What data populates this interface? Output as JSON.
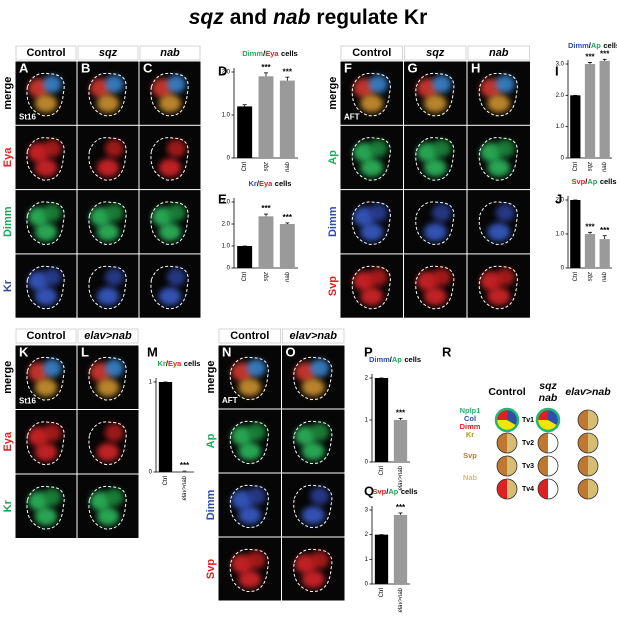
{
  "title_parts": [
    {
      "text": "sqz",
      "italic": true
    },
    {
      "text": "and"
    },
    {
      "text": "nab",
      "italic": true
    },
    {
      "text": "regulate Kr"
    }
  ],
  "image_groups": [
    {
      "columns": [
        "Control",
        "sqz",
        "nab"
      ],
      "rows": [
        "merge",
        "Eya",
        "Dimm",
        "Kr"
      ],
      "row_colors": [
        "#000000",
        "#e02020",
        "#1fa85a",
        "#2e4fa8"
      ],
      "panel_letters": [
        "A",
        "B",
        "C"
      ],
      "stage": "St16"
    },
    {
      "columns": [
        "Control",
        "sqz",
        "nab"
      ],
      "rows": [
        "merge",
        "Ap",
        "Dimm",
        "Svp"
      ],
      "row_colors": [
        "#000000",
        "#1fa85a",
        "#2e4fa8",
        "#e02020"
      ],
      "panel_letters": [
        "F",
        "G",
        "H"
      ],
      "stage": "AFT"
    },
    {
      "columns": [
        "Control",
        "elav>nab"
      ],
      "rows": [
        "merge",
        "Eya",
        "Kr"
      ],
      "row_colors": [
        "#000000",
        "#e02020",
        "#1fa85a"
      ],
      "panel_letters": [
        "K",
        "L"
      ],
      "stage": "St16"
    },
    {
      "columns": [
        "Control",
        "elav>nab"
      ],
      "rows": [
        "merge",
        "Ap",
        "Dimm",
        "Svp"
      ],
      "row_colors": [
        "#000000",
        "#1fa85a",
        "#2e4fa8",
        "#e02020"
      ],
      "panel_letters": [
        "N",
        "O"
      ],
      "stage": "AFT"
    }
  ],
  "chart_data": [
    {
      "type": "bar",
      "letter": "D",
      "title_parts": [
        {
          "text": "Dimm",
          "color": "#1fa85a"
        },
        {
          "text": "/"
        },
        {
          "text": "Eya",
          "color": "#e02020"
        },
        {
          "text": "cells"
        }
      ],
      "categories": [
        "Ctrl",
        "sqz",
        "nab"
      ],
      "values": [
        1.2,
        1.9,
        1.8
      ],
      "errors": [
        0.04,
        0.08,
        0.08
      ],
      "significance": [
        null,
        "***",
        "***"
      ],
      "colors": [
        "#000000",
        "#9a9a9a",
        "#9a9a9a"
      ],
      "ylim": [
        0,
        2
      ],
      "yticks": [
        0,
        {
          "value": 1,
          "label": "1.0"
        },
        {
          "value": 2,
          "label": "2.0"
        }
      ]
    },
    {
      "type": "bar",
      "letter": "E",
      "title_parts": [
        {
          "text": "Kr",
          "color": "#2e4fa8"
        },
        {
          "text": "/"
        },
        {
          "text": "Eya",
          "color": "#e02020"
        },
        {
          "text": "cells"
        }
      ],
      "categories": [
        "Ctrl",
        "sqz",
        "nab"
      ],
      "values": [
        1.0,
        2.35,
        2.0
      ],
      "errors": [
        0,
        0.1,
        0.05
      ],
      "significance": [
        null,
        "***",
        "***"
      ],
      "colors": [
        "#000000",
        "#9a9a9a",
        "#9a9a9a"
      ],
      "ylim": [
        0,
        3
      ],
      "yticks": [
        0,
        {
          "value": 1,
          "label": "1.0"
        },
        {
          "value": 2,
          "label": "2.0"
        },
        {
          "value": 3,
          "label": "3.0"
        }
      ]
    },
    {
      "type": "bar",
      "letter": "I",
      "title_parts": [
        {
          "text": "Dimm",
          "color": "#2e4fa8"
        },
        {
          "text": "/"
        },
        {
          "text": "Ap",
          "color": "#1fa85a"
        },
        {
          "text": "cells"
        }
      ],
      "categories": [
        "Ctrl",
        "sqz",
        "nab"
      ],
      "values": [
        2.0,
        3.0,
        3.1
      ],
      "errors": [
        0,
        0.05,
        0.05
      ],
      "significance": [
        null,
        "***",
        "***"
      ],
      "colors": [
        "#000000",
        "#9a9a9a",
        "#9a9a9a"
      ],
      "ylim": [
        0,
        3
      ],
      "yticks": [
        0,
        {
          "value": 1,
          "label": "1.0"
        },
        {
          "value": 2,
          "label": "2.0"
        },
        {
          "value": 3,
          "label": "3.0"
        }
      ]
    },
    {
      "type": "bar",
      "letter": "J",
      "title_parts": [
        {
          "text": "Svp",
          "color": "#e02020"
        },
        {
          "text": "/"
        },
        {
          "text": "Ap",
          "color": "#1fa85a"
        },
        {
          "text": "cells"
        }
      ],
      "categories": [
        "Ctrl",
        "sqz",
        "nab"
      ],
      "values": [
        2.0,
        1.0,
        0.85
      ],
      "errors": [
        0,
        0.05,
        0.1
      ],
      "significance": [
        null,
        "***",
        "***"
      ],
      "colors": [
        "#000000",
        "#9a9a9a",
        "#9a9a9a"
      ],
      "ylim": [
        0,
        2
      ],
      "yticks": [
        0,
        {
          "value": 1,
          "label": "1.0"
        },
        {
          "value": 2,
          "label": "2.0"
        }
      ]
    },
    {
      "type": "bar",
      "letter": "M",
      "title_parts": [
        {
          "text": "Kr",
          "color": "#1fa85a"
        },
        {
          "text": "/"
        },
        {
          "text": "Eya",
          "color": "#e02020"
        },
        {
          "text": "cells"
        }
      ],
      "categories": [
        "Ctrl",
        "elav>nab"
      ],
      "values": [
        1,
        0.01
      ],
      "errors": [
        0,
        0
      ],
      "significance": [
        null,
        "***"
      ],
      "colors": [
        "#000000",
        "#9a9a9a"
      ],
      "ylim": [
        0,
        1
      ],
      "yticks": [
        0,
        1
      ]
    },
    {
      "type": "bar",
      "letter": "P",
      "title_parts": [
        {
          "text": "Dimm",
          "color": "#2e4fa8"
        },
        {
          "text": "/"
        },
        {
          "text": "Ap",
          "color": "#1fa85a"
        },
        {
          "text": "cells"
        }
      ],
      "categories": [
        "Ctrl",
        "elav>nab"
      ],
      "values": [
        2,
        1
      ],
      "errors": [
        0,
        0.04
      ],
      "significance": [
        null,
        "***"
      ],
      "colors": [
        "#000000",
        "#9a9a9a"
      ],
      "ylim": [
        0,
        2
      ],
      "yticks": [
        0,
        1,
        2
      ]
    },
    {
      "type": "bar",
      "letter": "Q",
      "title_parts": [
        {
          "text": "Svp",
          "color": "#e02020"
        },
        {
          "text": "/"
        },
        {
          "text": "Ap",
          "color": "#1fa85a"
        },
        {
          "text": "cells"
        }
      ],
      "categories": [
        "Ctrl",
        "elav>nab"
      ],
      "values": [
        2,
        2.8
      ],
      "errors": [
        0,
        0.08
      ],
      "significance": [
        null,
        "***"
      ],
      "colors": [
        "#000000",
        "#9a9a9a"
      ],
      "ylim": [
        0,
        3
      ],
      "yticks": [
        0,
        1,
        2,
        3
      ]
    }
  ],
  "schematic": {
    "letter": "R",
    "columns": [
      {
        "lines": [
          "Control"
        ]
      },
      {
        "lines": [
          "sqz",
          "nab"
        ]
      },
      {
        "lines": [
          "elav>nab"
        ]
      }
    ],
    "legend": [
      {
        "text": "Nplp1",
        "color": "#22b573"
      },
      {
        "text": "Col",
        "color": "#2e4fa8"
      },
      {
        "text": "Dimm",
        "color": "#e02020"
      },
      {
        "text": "Kr",
        "color": "#a89a1e"
      },
      {
        "text": "Svp",
        "color": "#c07830"
      },
      {
        "text": "Nab",
        "color": "#d6bd73"
      }
    ],
    "neurons": [
      "Tv1",
      "Tv2",
      "Tv3",
      "Tv4"
    ]
  }
}
